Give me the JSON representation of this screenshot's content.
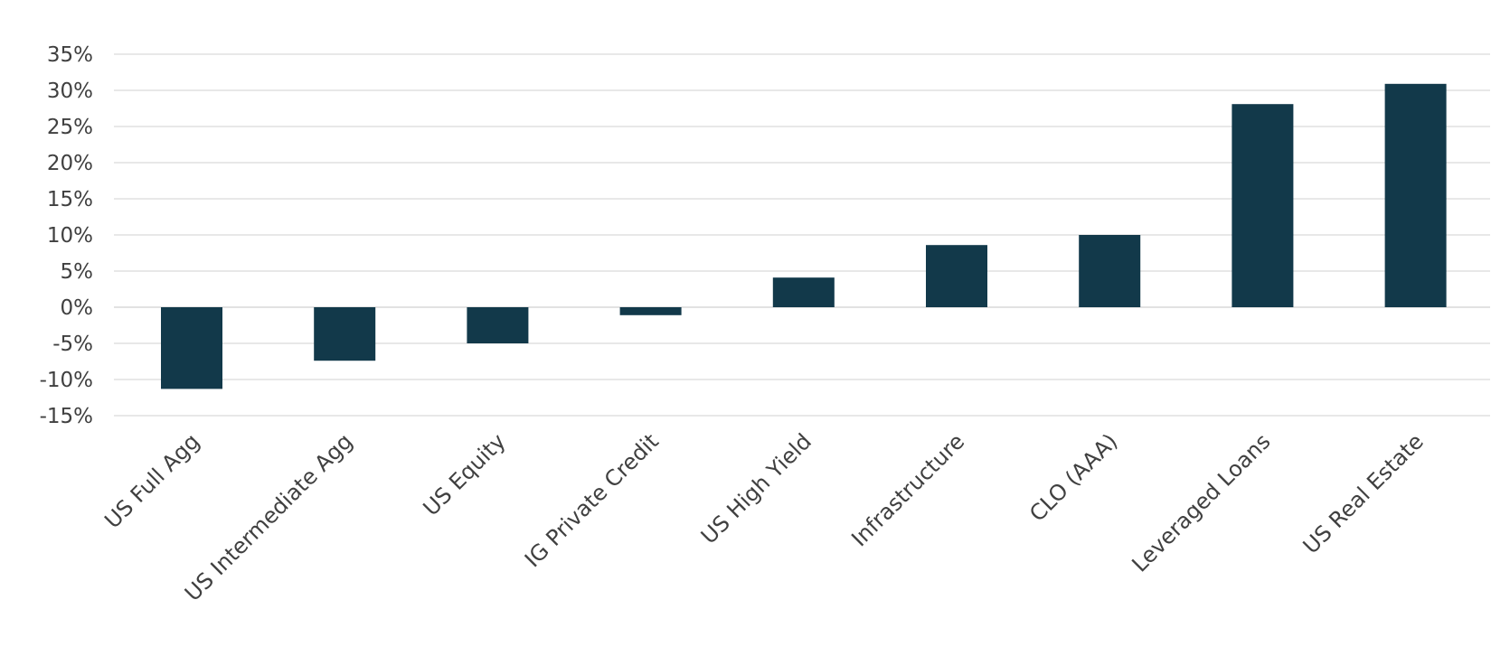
{
  "chart_data": {
    "type": "bar",
    "title": "",
    "xlabel": "",
    "ylabel": "",
    "categories": [
      "US Full Agg",
      "US Intermediate Agg",
      "US Equity",
      "IG Private Credit",
      "US High Yield",
      "Infrastructure",
      "CLO (AAA)",
      "Leveraged Loans",
      "US Real Estate"
    ],
    "values": [
      -11.3,
      -7.4,
      -5.0,
      -1.1,
      4.1,
      8.6,
      10.0,
      28.1,
      30.9
    ],
    "ylim": [
      -15,
      35
    ],
    "yticks": [
      35,
      30,
      25,
      20,
      15,
      10,
      5,
      0,
      -5,
      -10,
      -15
    ],
    "ytick_labels": [
      "35%",
      "30%",
      "25%",
      "20%",
      "15%",
      "10%",
      "5%",
      "0%",
      "-5%",
      "-10%",
      "-15%"
    ],
    "grid": true,
    "legend": "none",
    "bar_color": "#12394A",
    "grid_color": "#D9D9D9",
    "label_color": "#404040"
  }
}
